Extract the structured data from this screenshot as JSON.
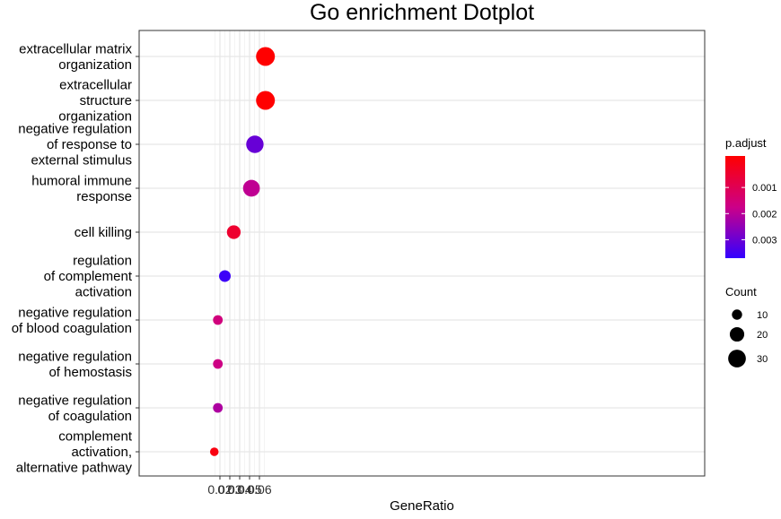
{
  "chart_data": {
    "type": "scatter",
    "title": "Go enrichment Dotplot",
    "xlabel": "GeneRatio",
    "ylabel": "",
    "xlim": [
      0.0115,
      0.0675
    ],
    "x_ticks": [
      "0.02",
      "0.03",
      "0.04",
      "0.05",
      "0.06"
    ],
    "x_tick_values": [
      0.02,
      0.03,
      0.04,
      0.05,
      0.06
    ],
    "grid": true,
    "color_scale": {
      "low": "#ff0000",
      "high": "#3300ff",
      "min": 0.0,
      "max": 0.0035
    },
    "categories": [
      {
        "lines": [
          "extracellular matrix",
          "organization"
        ],
        "gene_ratio": 0.0661,
        "count": 34,
        "p_adjust": 0.0
      },
      {
        "lines": [
          "extracellular",
          "structure",
          "organization"
        ],
        "gene_ratio": 0.0661,
        "count": 34,
        "p_adjust": 0.0
      },
      {
        "lines": [
          "negative regulation",
          "of response to",
          "external stimulus"
        ],
        "gene_ratio": 0.0554,
        "count": 29,
        "p_adjust": 0.0029
      },
      {
        "lines": [
          "humoral immune",
          "response"
        ],
        "gene_ratio": 0.0519,
        "count": 27,
        "p_adjust": 0.0019
      },
      {
        "lines": [
          "cell killing"
        ],
        "gene_ratio": 0.034,
        "count": 18,
        "p_adjust": 0.0006
      },
      {
        "lines": [
          "regulation",
          "of complement",
          "activation"
        ],
        "gene_ratio": 0.025,
        "count": 13,
        "p_adjust": 0.0034
      },
      {
        "lines": [
          "negative regulation",
          "of blood coagulation"
        ],
        "gene_ratio": 0.0179,
        "count": 9,
        "p_adjust": 0.0016
      },
      {
        "lines": [
          "negative regulation",
          "of hemostasis"
        ],
        "gene_ratio": 0.0179,
        "count": 9,
        "p_adjust": 0.0017
      },
      {
        "lines": [
          "negative regulation",
          "of coagulation"
        ],
        "gene_ratio": 0.0179,
        "count": 9,
        "p_adjust": 0.0021
      },
      {
        "lines": [
          "complement",
          "activation,",
          "alternative pathway"
        ],
        "gene_ratio": 0.0143,
        "count": 7,
        "p_adjust": 0.0002
      }
    ]
  },
  "legend": {
    "color_title": "p.adjust",
    "color_ticks": [
      {
        "label": "0.001",
        "value": 0.001
      },
      {
        "label": "0.002",
        "value": 0.002
      },
      {
        "label": "0.003",
        "value": 0.003
      }
    ],
    "size_title": "Count",
    "size_entries": [
      {
        "label": "10",
        "value": 10
      },
      {
        "label": "20",
        "value": 20
      },
      {
        "label": "30",
        "value": 30
      }
    ]
  }
}
